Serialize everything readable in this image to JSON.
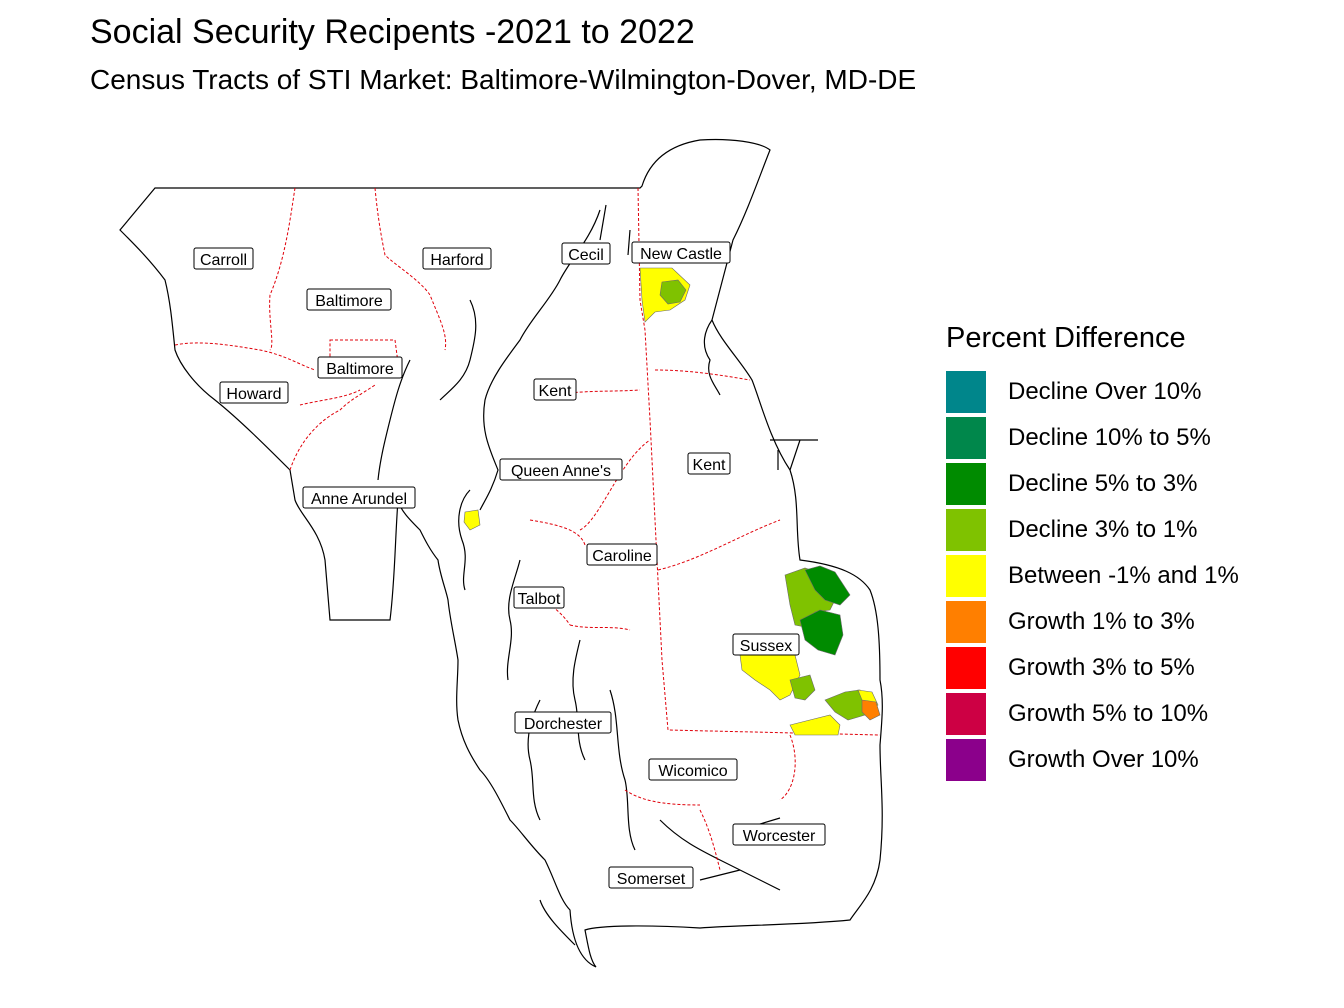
{
  "title": "Social Security Recipents -2021 to 2022",
  "subtitle": "Census Tracts of STI Market: Baltimore-Wilmington-Dover, MD-DE",
  "legend": {
    "title": "Percent Difference",
    "items": [
      {
        "label": "Decline Over 10%",
        "color": "#00868B"
      },
      {
        "label": "Decline 10% to 5%",
        "color": "#00874B"
      },
      {
        "label": "Decline 5% to 3%",
        "color": "#008B00"
      },
      {
        "label": "Decline 3% to 1%",
        "color": "#7FC200"
      },
      {
        "label": "Between -1% and 1%",
        "color": "#FFFF00"
      },
      {
        "label": "Growth 1% to 3%",
        "color": "#FF7F00"
      },
      {
        "label": "Growth 3% to 5%",
        "color": "#FF0000"
      },
      {
        "label": "Growth 5% to 10%",
        "color": "#CD0044"
      },
      {
        "label": "Growth Over 10%",
        "color": "#8B008B"
      }
    ]
  },
  "counties": {
    "carroll": "Carroll",
    "harford": "Harford",
    "cecil": "Cecil",
    "new_castle": "New Castle",
    "baltimore_county": "Baltimore",
    "baltimore_city": "Baltimore",
    "howard": "Howard",
    "kent_md": "Kent",
    "kent_de": "Kent",
    "queen_annes": "Queen Anne's",
    "anne_arundel": "Anne Arundel",
    "caroline": "Caroline",
    "talbot": "Talbot",
    "sussex": "Sussex",
    "dorchester": "Dorchester",
    "wicomico": "Wicomico",
    "worcester": "Worcester",
    "somerset": "Somerset"
  },
  "colors": {
    "state_boundary": "#000000",
    "county_boundary": "#E0000A"
  }
}
